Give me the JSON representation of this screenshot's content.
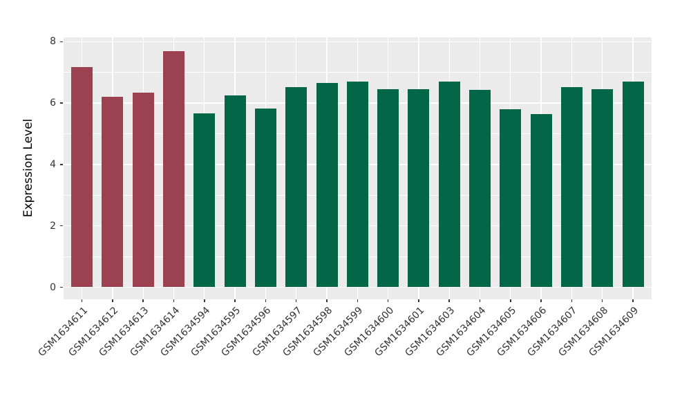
{
  "chart_data": {
    "type": "bar",
    "title": "",
    "xlabel": "",
    "ylabel": "Expression Level",
    "categories": [
      "GSM1634611",
      "GSM1634612",
      "GSM1634613",
      "GSM1634614",
      "GSM1634594",
      "GSM1634595",
      "GSM1634596",
      "GSM1634597",
      "GSM1634598",
      "GSM1634599",
      "GSM1634600",
      "GSM1634601",
      "GSM1634603",
      "GSM1634604",
      "GSM1634605",
      "GSM1634606",
      "GSM1634607",
      "GSM1634608",
      "GSM1634609"
    ],
    "values": [
      7.17,
      6.2,
      6.35,
      7.7,
      5.66,
      6.24,
      5.82,
      6.51,
      6.66,
      6.7,
      6.46,
      6.46,
      6.69,
      6.44,
      5.81,
      5.65,
      6.51,
      6.46,
      6.69
    ],
    "bar_colors": [
      "#9B4150",
      "#9B4150",
      "#9B4150",
      "#9B4150",
      "#026647",
      "#026647",
      "#026647",
      "#026647",
      "#026647",
      "#026647",
      "#026647",
      "#026647",
      "#026647",
      "#026647",
      "#026647",
      "#026647",
      "#026647",
      "#026647",
      "#026647"
    ],
    "yticks": [
      0,
      2,
      4,
      6,
      8
    ],
    "minor_yticks": [
      1,
      3,
      5,
      7
    ],
    "ylim": [
      -0.4,
      8.15
    ],
    "grid": true,
    "legend_position": "none",
    "colors": {
      "highlight_group": "#9B4150",
      "normal_group": "#026647",
      "panel_background": "#EBEBEB",
      "gridline": "#FFFFFF",
      "tick_text": "#333333",
      "axis_title_text": "#000000",
      "tick_mark": "#333333"
    }
  }
}
